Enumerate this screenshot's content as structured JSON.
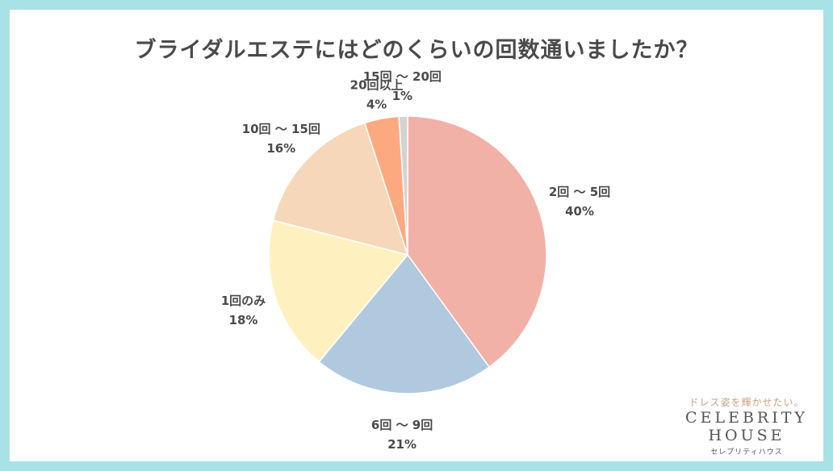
{
  "chart_data": {
    "type": "pie",
    "title": "ブライダルエステにはどのくらいの回数通いましたか？",
    "slices": [
      {
        "label": "2回 ～ 5回",
        "value": 40,
        "display": "40%",
        "color": "#f2b1a7"
      },
      {
        "label": "6回 ～ 9回",
        "value": 21,
        "display": "21%",
        "color": "#b0c9de"
      },
      {
        "label": "1回のみ",
        "value": 18,
        "display": "18%",
        "color": "#fff1bf"
      },
      {
        "label": "10回 ～ 15回",
        "value": 16,
        "display": "16%",
        "color": "#f6d7ba"
      },
      {
        "label": "20回以上",
        "value": 4,
        "display": "4%",
        "color": "#fda97f"
      },
      {
        "label": "15回 ～ 20回",
        "value": 1,
        "display": "1%",
        "color": "#d3d3d3"
      }
    ]
  },
  "brand": {
    "tagline": "ドレス姿を輝かせたい。",
    "logo_line1": "CELEBRITY",
    "logo_line2": "HOUSE",
    "logo_kana": "セレブリティハウス"
  },
  "colors": {
    "border": "#a8e2e7",
    "text": "#4a4a4a"
  }
}
